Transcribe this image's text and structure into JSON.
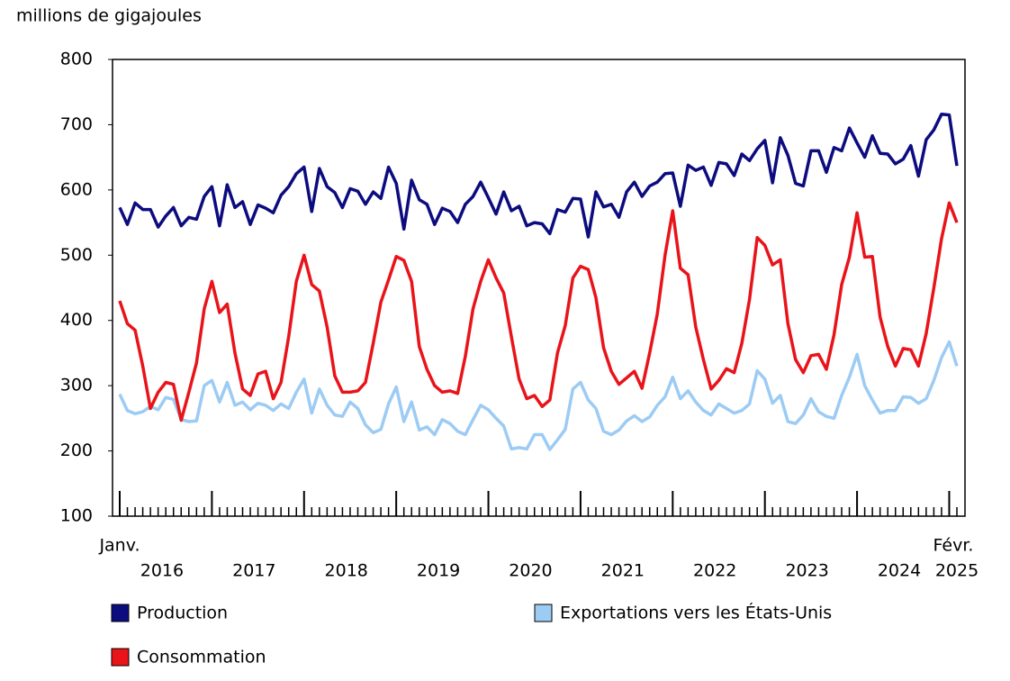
{
  "chart_data": {
    "type": "line",
    "y_axis_label": "millions de gigajoules",
    "categories": [
      "Janv.",
      null,
      null,
      null,
      null,
      null,
      null,
      null,
      null,
      null,
      null,
      null,
      null,
      null,
      null,
      null,
      null,
      null,
      null,
      null,
      null,
      null,
      null,
      null,
      null,
      null,
      null,
      null,
      null,
      null,
      null,
      null,
      null,
      null,
      null,
      null,
      null,
      null,
      null,
      null,
      null,
      null,
      null,
      null,
      null,
      null,
      null,
      null,
      null,
      null,
      null,
      null,
      null,
      null,
      null,
      null,
      null,
      null,
      null,
      null,
      null,
      null,
      null,
      null,
      null,
      null,
      null,
      null,
      null,
      null,
      null,
      null,
      null,
      null,
      null,
      null,
      null,
      null,
      null,
      null,
      null,
      null,
      null,
      null,
      null,
      null,
      null,
      null,
      null,
      null,
      null,
      null,
      null,
      null,
      null,
      null,
      null,
      null,
      null,
      null,
      null,
      null,
      null,
      null,
      null,
      null,
      null,
      null,
      null,
      "Févr."
    ],
    "year_labels": [
      "2016",
      "2017",
      "2018",
      "2019",
      "2020",
      "2021",
      "2022",
      "2023",
      "2024",
      "2025"
    ],
    "ylim": [
      100,
      800
    ],
    "yticks": [
      100,
      200,
      300,
      400,
      500,
      600,
      700,
      800
    ],
    "series": [
      {
        "name": "Production",
        "color": "#0c0c7f",
        "values": [
          573,
          547,
          580,
          570,
          570,
          543,
          560,
          573,
          545,
          558,
          555,
          590,
          605,
          545,
          608,
          573,
          582,
          547,
          577,
          572,
          565,
          592,
          605,
          625,
          635,
          567,
          633,
          605,
          596,
          573,
          602,
          598,
          578,
          597,
          587,
          635,
          610,
          540,
          615,
          585,
          578,
          547,
          572,
          567,
          550,
          578,
          590,
          612,
          588,
          563,
          597,
          568,
          575,
          545,
          550,
          548,
          533,
          570,
          566,
          587,
          586,
          528,
          597,
          574,
          578,
          558,
          597,
          612,
          590,
          606,
          612,
          625,
          626,
          575,
          638,
          630,
          635,
          607,
          642,
          640,
          622,
          655,
          645,
          663,
          676,
          611,
          680,
          653,
          610,
          606,
          660,
          660,
          627,
          665,
          660,
          695,
          672,
          650,
          683,
          656,
          655,
          640,
          647,
          668,
          621,
          677,
          692,
          716,
          715,
          637
        ]
      },
      {
        "name": "Exportations vers les États-Unis",
        "color": "#9ccbf4",
        "values": [
          287,
          262,
          257,
          260,
          268,
          263,
          282,
          279,
          248,
          245,
          246,
          300,
          308,
          275,
          305,
          270,
          275,
          263,
          273,
          270,
          262,
          272,
          265,
          290,
          310,
          258,
          295,
          270,
          255,
          253,
          275,
          265,
          240,
          228,
          233,
          272,
          298,
          245,
          275,
          232,
          237,
          225,
          248,
          242,
          230,
          225,
          248,
          270,
          263,
          250,
          238,
          203,
          205,
          203,
          225,
          225,
          202,
          217,
          233,
          295,
          305,
          278,
          265,
          230,
          225,
          232,
          246,
          254,
          245,
          252,
          270,
          283,
          313,
          280,
          292,
          275,
          262,
          255,
          272,
          265,
          258,
          262,
          272,
          323,
          310,
          273,
          285,
          245,
          242,
          255,
          280,
          260,
          253,
          250,
          285,
          313,
          348,
          300,
          278,
          258,
          262,
          262,
          283,
          282,
          273,
          280,
          308,
          343,
          367,
          330
        ]
      },
      {
        "name": "Consommation",
        "color": "#e8141a",
        "values": [
          430,
          395,
          385,
          330,
          265,
          290,
          305,
          302,
          247,
          290,
          335,
          418,
          460,
          412,
          425,
          350,
          295,
          285,
          318,
          322,
          280,
          305,
          375,
          460,
          500,
          455,
          445,
          390,
          315,
          290,
          290,
          292,
          305,
          365,
          428,
          462,
          498,
          492,
          460,
          360,
          325,
          300,
          290,
          292,
          288,
          345,
          418,
          460,
          493,
          465,
          442,
          375,
          310,
          280,
          285,
          268,
          278,
          350,
          392,
          465,
          483,
          478,
          435,
          358,
          322,
          302,
          312,
          322,
          296,
          350,
          410,
          500,
          568,
          480,
          470,
          390,
          340,
          295,
          308,
          326,
          320,
          365,
          432,
          527,
          515,
          485,
          493,
          395,
          340,
          320,
          346,
          348,
          325,
          378,
          455,
          497,
          565,
          497,
          498,
          405,
          360,
          330,
          357,
          355,
          330,
          380,
          450,
          525,
          580,
          550
        ]
      }
    ]
  }
}
